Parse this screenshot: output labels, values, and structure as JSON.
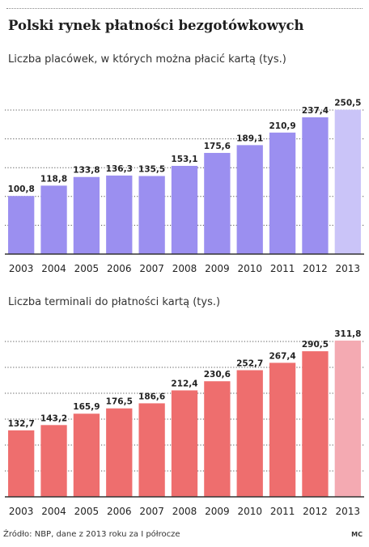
{
  "title": "Polski rynek płatności bezgotówkowych",
  "source": "Źródło: NBP, dane z 2013 roku za I półrocze",
  "author": "MC",
  "chart_data": [
    {
      "type": "bar",
      "title": "Liczba placówek, w których można płacić kartą (tys.)",
      "categories": [
        "2003",
        "2004",
        "2005",
        "2006",
        "2007",
        "2008",
        "2009",
        "2010",
        "2011",
        "2012",
        "2013"
      ],
      "values": [
        100.8,
        118.8,
        133.8,
        136.3,
        135.5,
        153.1,
        175.6,
        189.1,
        210.9,
        237.4,
        250.5
      ],
      "labels": [
        "100,8",
        "118,8",
        "133,8",
        "136,3",
        "135,5",
        "153,1",
        "175,6",
        "189,1",
        "210,9",
        "237,4",
        "250,5"
      ],
      "color": "#9b8ff0",
      "highlight_color": "#cac4f8",
      "ylim": [
        0,
        250
      ],
      "grid": true
    },
    {
      "type": "bar",
      "title": "Liczba terminali do płatności kartą (tys.)",
      "categories": [
        "2003",
        "2004",
        "2005",
        "2006",
        "2007",
        "2008",
        "2009",
        "2010",
        "2011",
        "2012",
        "2013"
      ],
      "values": [
        132.7,
        143.2,
        165.9,
        176.5,
        186.6,
        212.4,
        230.6,
        252.7,
        267.4,
        290.5,
        311.8
      ],
      "labels": [
        "132,7",
        "143,2",
        "165,9",
        "176,5",
        "186,6",
        "212,4",
        "230,6",
        "252,7",
        "267,4",
        "290,5",
        "311,8"
      ],
      "color": "#ee6e6e",
      "highlight_color": "#f4aab2",
      "ylim": [
        0,
        310
      ],
      "grid": true
    }
  ]
}
